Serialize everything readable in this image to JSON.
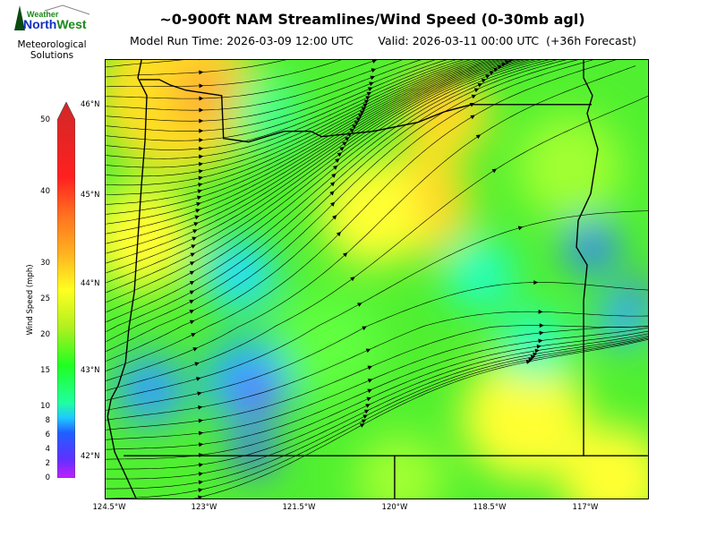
{
  "header": {
    "title": "~0-900ft NAM Streamlines/Wind Speed (0-30mb agl)",
    "subtitle": "Model Run Time: 2026-03-09 12:00 UTC       Valid: 2026-03-11 00:00 UTC  (+36h Forecast)"
  },
  "logo": {
    "text_top": "Weather",
    "text_main": "NorthWest",
    "tagline_1": "Meteorological",
    "tagline_2": "Solutions"
  },
  "colorbar": {
    "label": "Wind Speed (mph)",
    "ticks": [
      "50",
      "40",
      "30",
      "25",
      "20",
      "15",
      "10",
      "8",
      "6",
      "4",
      "2",
      "0"
    ],
    "colors": [
      "#c020ff",
      "#6030ff",
      "#2060ff",
      "#20c8ff",
      "#20ffa0",
      "#20ff20",
      "#b0f020",
      "#ffff20",
      "#ffb020",
      "#ff7020",
      "#ff2020",
      "#d02828"
    ]
  },
  "map": {
    "lat_labels": [
      "46°N",
      "45°N",
      "44°N",
      "43°N",
      "42°N"
    ],
    "lon_labels": [
      "124.5°W",
      "123°W",
      "121.5°W",
      "120°W",
      "118.5°W",
      "117°W"
    ]
  }
}
